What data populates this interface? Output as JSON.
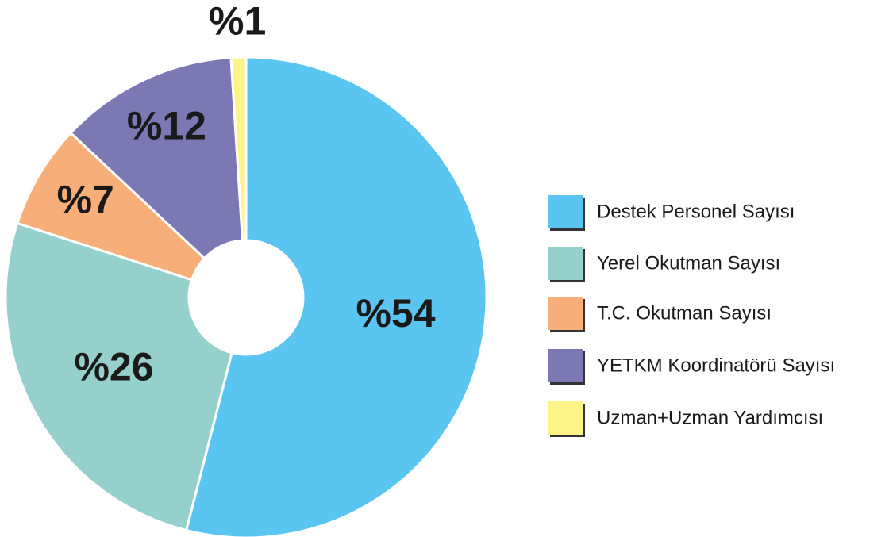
{
  "chart_data": {
    "type": "pie",
    "categories": [
      "Destek Personel Sayısı",
      "Yerel Okutman Sayısı",
      "T.C. Okutman Sayısı",
      "YETKM Koordinatörü Sayısı",
      "Uzman+Uzman Yardımcısı"
    ],
    "values": [
      54,
      26,
      7,
      12,
      1
    ],
    "value_labels": [
      "%54",
      "%26",
      "%7",
      "%12",
      "%1"
    ],
    "colors": [
      "#5bc5f2",
      "#96d0cc",
      "#f7ae79",
      "#7b78b4",
      "#fdf386"
    ],
    "legend": "right"
  }
}
